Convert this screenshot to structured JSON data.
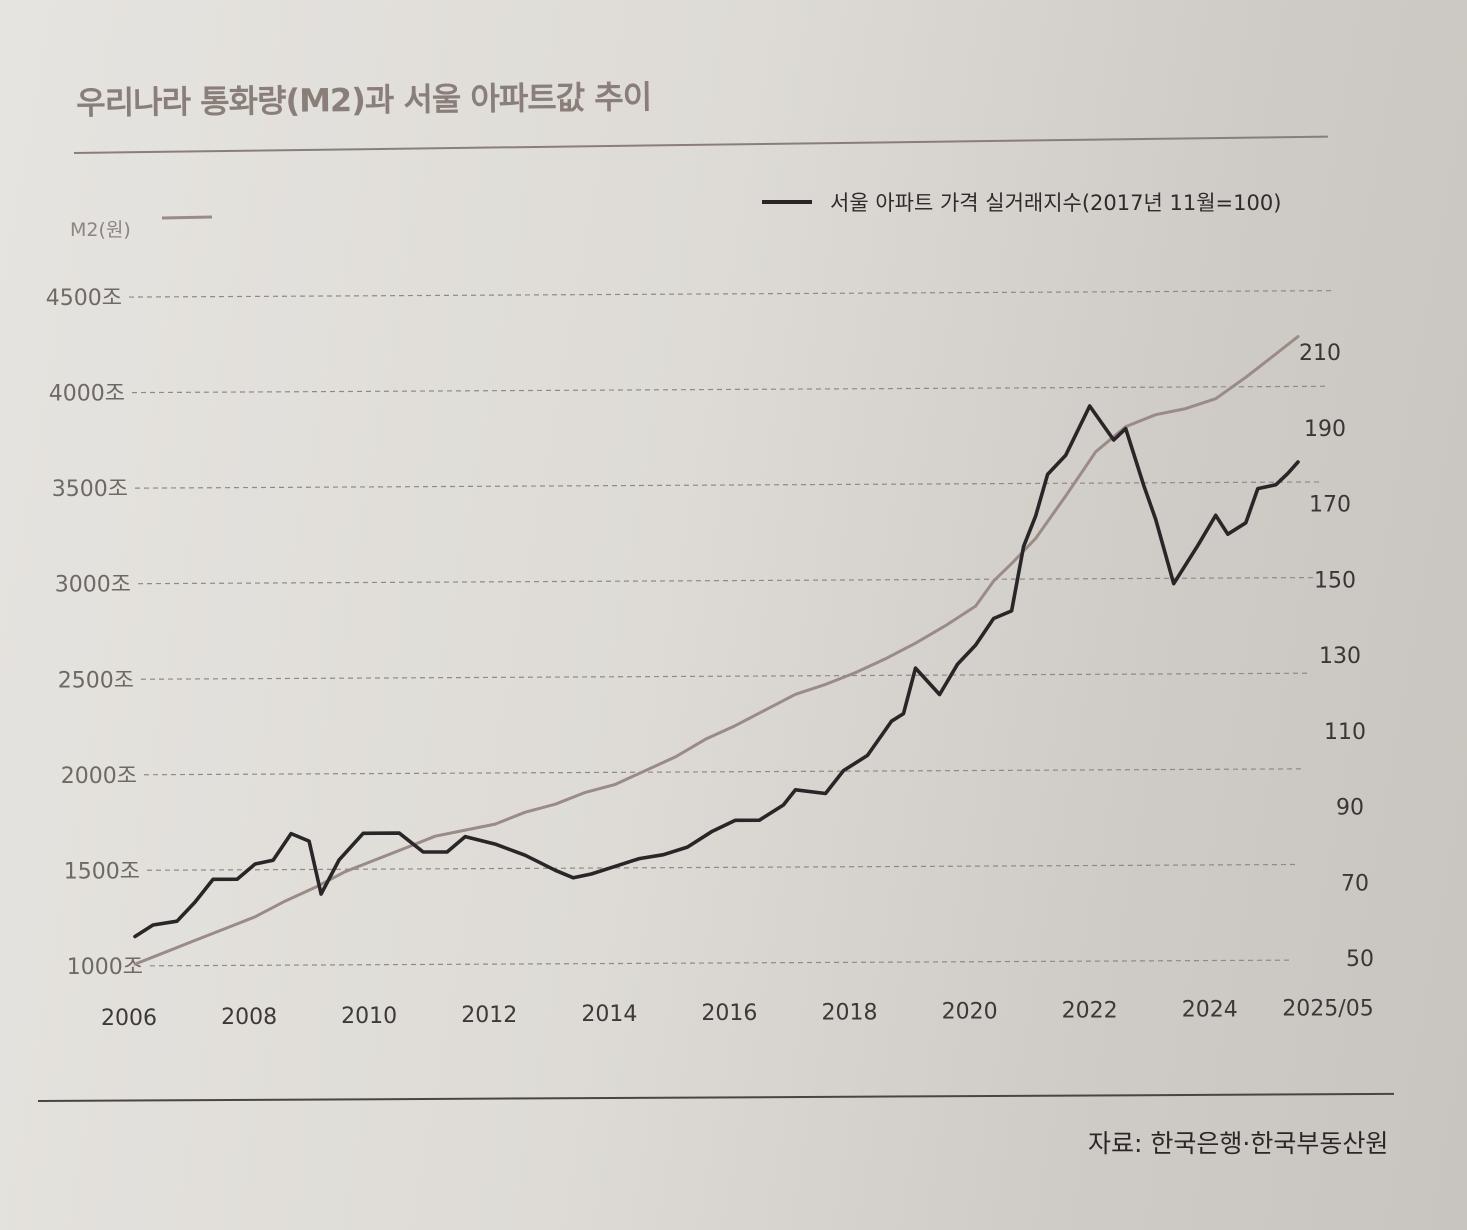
{
  "chart_data": {
    "type": "line",
    "title": "우리나라 통화량(M2)과 서울 아파트값 추이",
    "source": "자료: 한국은행·한국부동산원",
    "x_ticks": [
      "2006",
      "2008",
      "2010",
      "2012",
      "2014",
      "2016",
      "2018",
      "2020",
      "2022",
      "2024",
      "2025/05"
    ],
    "x_tick_values": [
      2006,
      2008,
      2010,
      2012,
      2014,
      2016,
      2018,
      2020,
      2022,
      2024,
      2025.37
    ],
    "xlim": [
      2006,
      2025.37
    ],
    "left_axis": {
      "label": "M2(원)",
      "ylim": [
        1000,
        4500
      ],
      "ticks": [
        "1000조",
        "1500조",
        "2000조",
        "2500조",
        "3000조",
        "3500조",
        "4000조",
        "4500조"
      ],
      "tick_values": [
        1000,
        1500,
        2000,
        2500,
        3000,
        3500,
        4000,
        4500
      ]
    },
    "right_axis": {
      "ylim": [
        50,
        210
      ],
      "ticks": [
        "50",
        "70",
        "90",
        "110",
        "130",
        "150",
        "170",
        "190",
        "210"
      ],
      "tick_values": [
        50,
        70,
        90,
        110,
        130,
        150,
        170,
        190,
        210
      ]
    },
    "grid": true,
    "colors": {
      "m2": "#9a8b86",
      "index": "#2a2627",
      "grid": "#8f8a86"
    },
    "series": [
      {
        "name": "M2(원)",
        "axis": "left",
        "unit": "조",
        "x": [
          2006.0,
          2006.5,
          2007.0,
          2007.5,
          2008.0,
          2008.5,
          2009.0,
          2009.5,
          2010.0,
          2010.5,
          2011.0,
          2011.5,
          2012.0,
          2012.5,
          2013.0,
          2013.5,
          2014.0,
          2014.5,
          2015.0,
          2015.5,
          2016.0,
          2016.5,
          2017.0,
          2017.5,
          2018.0,
          2018.5,
          2019.0,
          2019.5,
          2020.0,
          2020.3,
          2020.6,
          2021.0,
          2021.5,
          2022.0,
          2022.5,
          2023.0,
          2023.5,
          2024.0,
          2024.5,
          2025.0,
          2025.37
        ],
        "values": [
          1010,
          1070,
          1130,
          1190,
          1250,
          1330,
          1400,
          1480,
          1540,
          1600,
          1660,
          1690,
          1720,
          1780,
          1820,
          1880,
          1920,
          1990,
          2060,
          2150,
          2220,
          2300,
          2380,
          2430,
          2490,
          2560,
          2640,
          2730,
          2830,
          2960,
          3050,
          3180,
          3400,
          3630,
          3760,
          3820,
          3850,
          3900,
          4010,
          4130,
          4220
        ]
      },
      {
        "name": "서울 아파트 가격 실거래지수(2017년 11월=100)",
        "axis": "right",
        "x": [
          2006.0,
          2006.3,
          2006.7,
          2007.0,
          2007.3,
          2007.7,
          2008.0,
          2008.3,
          2008.6,
          2008.9,
          2009.1,
          2009.4,
          2009.8,
          2010.1,
          2010.4,
          2010.8,
          2011.2,
          2011.5,
          2012.0,
          2012.5,
          2013.0,
          2013.3,
          2013.6,
          2014.0,
          2014.4,
          2014.8,
          2015.2,
          2015.6,
          2016.0,
          2016.4,
          2016.8,
          2017.0,
          2017.5,
          2017.8,
          2018.2,
          2018.6,
          2018.8,
          2019.0,
          2019.4,
          2019.7,
          2020.0,
          2020.3,
          2020.6,
          2020.8,
          2021.0,
          2021.2,
          2021.5,
          2021.9,
          2022.3,
          2022.5,
          2022.8,
          2023.0,
          2023.3,
          2023.7,
          2024.0,
          2024.2,
          2024.5,
          2024.7,
          2025.0,
          2025.2,
          2025.37
        ],
        "values": [
          57,
          60,
          61,
          66,
          72,
          72,
          76,
          77,
          84,
          82,
          68,
          77,
          84,
          84,
          84,
          79,
          79,
          83,
          81,
          78,
          74,
          72,
          73,
          75,
          77,
          78,
          80,
          84,
          87,
          87,
          91,
          95,
          94,
          100,
          104,
          113,
          115,
          127,
          120,
          128,
          133,
          140,
          142,
          159,
          167,
          178,
          183,
          196,
          187,
          190,
          175,
          166,
          149,
          159,
          167,
          162,
          165,
          174,
          175,
          178,
          181
        ]
      }
    ],
    "legend": [
      {
        "label": "M2(원)",
        "series": 0,
        "placement": "top-left"
      },
      {
        "label": "서울 아파트 가격 실거래지수(2017년 11월=100)",
        "series": 1,
        "placement": "top-right"
      }
    ]
  }
}
